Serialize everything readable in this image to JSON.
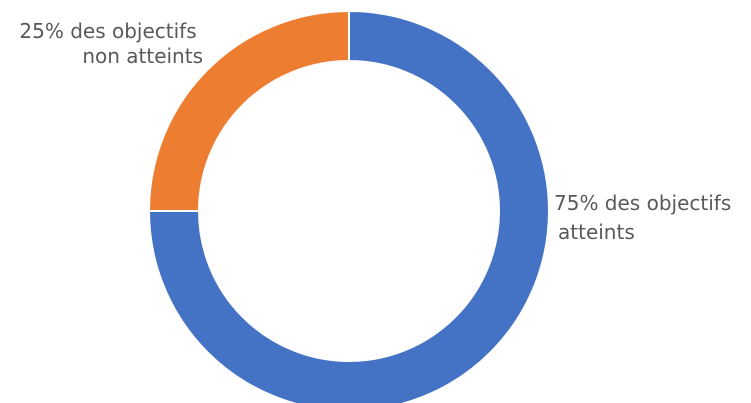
{
  "chart_data": {
    "type": "pie",
    "style": "donut",
    "title": "",
    "slices": [
      {
        "value": 75,
        "label_lines": [
          "75% des objectifs",
          "atteints"
        ],
        "color": "#4472C4"
      },
      {
        "value": 25,
        "label_lines": [
          "25% des objectifs",
          "non atteints"
        ],
        "color": "#ED7D31"
      }
    ],
    "start_angle": "top",
    "direction": "clockwise",
    "slice_border_color": "#ffffff"
  }
}
